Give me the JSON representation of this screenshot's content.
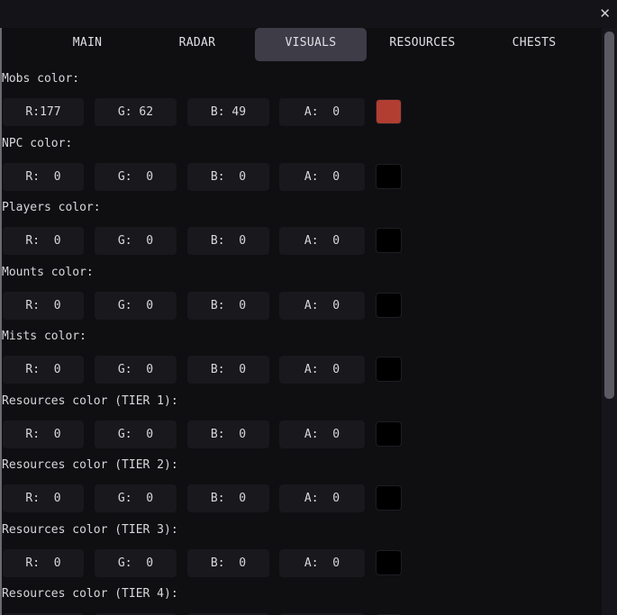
{
  "window": {
    "close_icon": "close-icon"
  },
  "tabs": [
    {
      "label": "MAIN",
      "active": false
    },
    {
      "label": "RADAR",
      "active": false
    },
    {
      "label": "VISUALS",
      "active": true
    },
    {
      "label": "RESOURCES",
      "active": false
    },
    {
      "label": "CHESTS",
      "active": false
    }
  ],
  "sections": [
    {
      "label": "Mobs color:",
      "r": "R:177",
      "g": "G: 62",
      "b": "B: 49",
      "a": "A:  0",
      "swatch": "#b13e31"
    },
    {
      "label": "NPC color:",
      "r": "R:  0",
      "g": "G:  0",
      "b": "B:  0",
      "a": "A:  0",
      "swatch": "#000000"
    },
    {
      "label": "Players color:",
      "r": "R:  0",
      "g": "G:  0",
      "b": "B:  0",
      "a": "A:  0",
      "swatch": "#000000"
    },
    {
      "label": "Mounts color:",
      "r": "R:  0",
      "g": "G:  0",
      "b": "B:  0",
      "a": "A:  0",
      "swatch": "#000000"
    },
    {
      "label": "Mists color:",
      "r": "R:  0",
      "g": "G:  0",
      "b": "B:  0",
      "a": "A:  0",
      "swatch": "#000000"
    },
    {
      "label": "Resources color (TIER 1):",
      "r": "R:  0",
      "g": "G:  0",
      "b": "B:  0",
      "a": "A:  0",
      "swatch": "#000000"
    },
    {
      "label": "Resources color (TIER 2):",
      "r": "R:  0",
      "g": "G:  0",
      "b": "B:  0",
      "a": "A:  0",
      "swatch": "#000000"
    },
    {
      "label": "Resources color (TIER 3):",
      "r": "R:  0",
      "g": "G:  0",
      "b": "B:  0",
      "a": "A:  0",
      "swatch": "#000000"
    },
    {
      "label": "Resources color (TIER 4):",
      "r": "",
      "g": "",
      "b": "",
      "a": "",
      "swatch": "#000000"
    }
  ]
}
